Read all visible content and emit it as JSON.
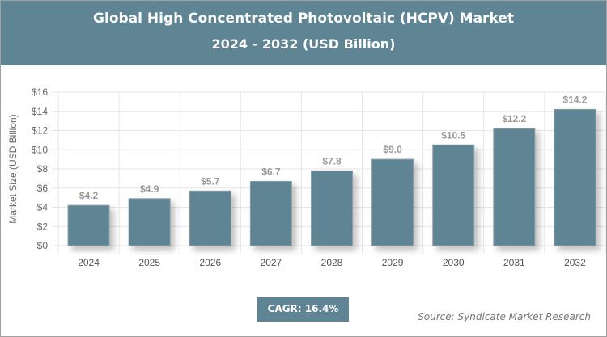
{
  "header": {
    "title": "Global High Concentrated Photovoltaic (HCPV) Market",
    "subtitle": "2024 - 2032 (USD Billion)"
  },
  "chart_data": {
    "type": "bar",
    "title": "Global High Concentrated Photovoltaic (HCPV) Market",
    "subtitle": "2024 - 2032 (USD Billion)",
    "categories": [
      "2024",
      "2025",
      "2026",
      "2027",
      "2028",
      "2029",
      "2030",
      "2031",
      "2032"
    ],
    "values": [
      4.2,
      4.9,
      5.7,
      6.7,
      7.8,
      9.0,
      10.5,
      12.2,
      14.2
    ],
    "data_labels": [
      "$4.2",
      "$4.9",
      "$5.7",
      "$6.7",
      "$7.8",
      "$9.0",
      "$10.5",
      "$12.2",
      "$14.2"
    ],
    "xlabel": "",
    "ylabel": "Market Size (USD Billion)",
    "ylim": [
      0,
      16
    ],
    "yticks": [
      "$0",
      "$2",
      "$4",
      "$6",
      "$8",
      "$10",
      "$12",
      "$14",
      "$16"
    ],
    "grid": true,
    "bar_color": "#5f8494"
  },
  "footer": {
    "cagr": "CAGR: 16.4%",
    "source": "Source: Syndicate Market Research"
  }
}
